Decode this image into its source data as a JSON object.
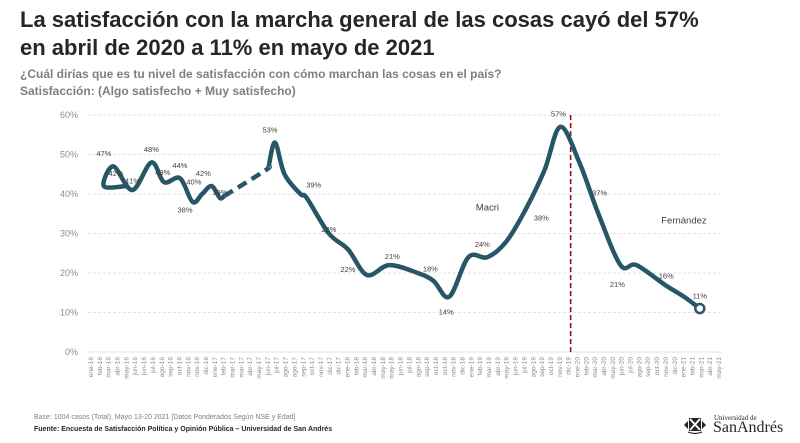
{
  "header": {
    "title": "La satisfacción con la marcha general de las cosas cayó del 57% en abril de 2020 a 11% en mayo de 2021",
    "subtitle_line1": "¿Cuál dirías que es tu nivel de satisfacción con cómo marchan las cosas en el país?",
    "subtitle_line2": "Satisfacción: (Algo satisfecho + Muy satisfecho)"
  },
  "chart_data": {
    "type": "line",
    "title": "La satisfacción con la marcha general de las cosas cayó del 57% en abril de 2020 a 11% en mayo de 2021",
    "xlabel": "",
    "ylabel": "",
    "ylim": [
      0,
      60
    ],
    "yticks": [
      "0%",
      "10%",
      "20%",
      "30%",
      "40%",
      "50%",
      "60%"
    ],
    "grid": true,
    "categories": [
      "ene-16",
      "feb-16",
      "mar-16",
      "abr-16",
      "may-16",
      "jun-16",
      "jun-16",
      "jul-16",
      "ago-16",
      "sep-16",
      "oct-16",
      "nov-16",
      "nov-16",
      "dic-16",
      "ene-17",
      "feb-17",
      "mar-17",
      "mar-17",
      "abr-17",
      "may-17",
      "jun-17",
      "jul-17",
      "ago-17",
      "ago-17",
      "sep-17",
      "oct-17",
      "nov-17",
      "dic-17",
      "dic-17",
      "ene-18",
      "feb-18",
      "mar-18",
      "abr-18",
      "may-18",
      "may-18",
      "jun-18",
      "jul-18",
      "ago-18",
      "sep-18",
      "oct-18",
      "oct-18",
      "nov-18",
      "dic-18",
      "ene-19",
      "feb-19",
      "mar-19",
      "abr-19",
      "may-19",
      "jun-19",
      "jul-19",
      "ago-19",
      "sep-19",
      "oct-19",
      "nov-19",
      "dic-19",
      "ene-20",
      "feb-20",
      "mar-20",
      "abr-20",
      "may-20",
      "jun-20",
      "jul-20",
      "ago-20",
      "sep-20",
      "oct-20",
      "nov-20",
      "dic-20",
      "ene-21",
      "feb-21",
      "mar-21",
      "abr-21",
      "may-21"
    ],
    "series": [
      {
        "name": "Satisfacción",
        "segments": [
          {
            "style": "solid",
            "points": [
              [
                0.06,
                42
              ],
              [
                0.025,
                42
              ],
              [
                0.04,
                47
              ],
              [
                0.07,
                41
              ],
              [
                0.1,
                48
              ],
              [
                0.12,
                43
              ],
              [
                0.145,
                44
              ],
              [
                0.165,
                38
              ],
              [
                0.18,
                40
              ],
              [
                0.195,
                42
              ],
              [
                0.208,
                39
              ],
              [
                0.215,
                39.5
              ]
            ]
          },
          {
            "style": "dashed",
            "points": [
              [
                0.215,
                39.5
              ],
              [
                0.28,
                46
              ],
              [
                0.285,
                47
              ]
            ]
          },
          {
            "style": "solid",
            "points": [
              [
                0.285,
                47
              ],
              [
                0.295,
                53
              ],
              [
                0.31,
                45
              ],
              [
                0.335,
                40
              ],
              [
                0.345,
                39
              ],
              [
                0.38,
                30
              ],
              [
                0.41,
                26
              ],
              [
                0.44,
                19.5
              ],
              [
                0.475,
                22
              ],
              [
                0.52,
                20
              ],
              [
                0.545,
                18
              ],
              [
                0.57,
                14
              ],
              [
                0.6,
                24
              ],
              [
                0.63,
                24
              ],
              [
                0.66,
                28
              ],
              [
                0.69,
                36
              ],
              [
                0.72,
                46
              ],
              [
                0.745,
                57
              ],
              [
                0.775,
                48
              ],
              [
                0.805,
                35
              ],
              [
                0.84,
                22
              ],
              [
                0.865,
                22
              ],
              [
                0.91,
                17
              ],
              [
                0.94,
                14
              ],
              [
                0.965,
                11
              ]
            ]
          }
        ]
      }
    ],
    "data_labels": [
      {
        "text": "42%",
        "value": 42
      },
      {
        "text": "47%",
        "value": 47
      },
      {
        "text": "41%",
        "value": 41
      },
      {
        "text": "48%",
        "value": 48
      },
      {
        "text": "43%",
        "value": 43
      },
      {
        "text": "44%",
        "value": 44
      },
      {
        "text": "38%",
        "value": 38
      },
      {
        "text": "40%",
        "value": 40
      },
      {
        "text": "42%",
        "value": 42
      },
      {
        "text": "39%",
        "value": 39
      },
      {
        "text": "53%",
        "value": 53
      },
      {
        "text": "39%",
        "value": 39
      },
      {
        "text": "28%",
        "value": 28
      },
      {
        "text": "22%",
        "value": 22
      },
      {
        "text": "21%",
        "value": 21
      },
      {
        "text": "18%",
        "value": 18
      },
      {
        "text": "14%",
        "value": 14
      },
      {
        "text": "24%",
        "value": 24
      },
      {
        "text": "38%",
        "value": 38
      },
      {
        "text": "57%",
        "value": 57
      },
      {
        "text": "37%",
        "value": 37
      },
      {
        "text": "21%",
        "value": 21
      },
      {
        "text": "16%",
        "value": 16
      },
      {
        "text": "11%",
        "value": 11
      }
    ],
    "annotations": [
      {
        "text": "Macri",
        "period": "before dic-19"
      },
      {
        "text": "Fernández",
        "period": "after dic-19"
      }
    ],
    "vline": {
      "at": "dic-19",
      "style": "dashed",
      "color": "#8b1a2b"
    },
    "line_color": "#275766"
  },
  "footer": {
    "base": "Base: 1004 casos (Total), Mayo 13-20 2021 [Datos Ponderados Según NSE y Edad]",
    "source": "Fuente: Encuesta de Satisfacción Política y Opinión Pública – Universidad de San Andrés"
  },
  "logo": {
    "small_text": "Universidad de",
    "name": "SanAndrés",
    "icon": "crest-icon"
  }
}
